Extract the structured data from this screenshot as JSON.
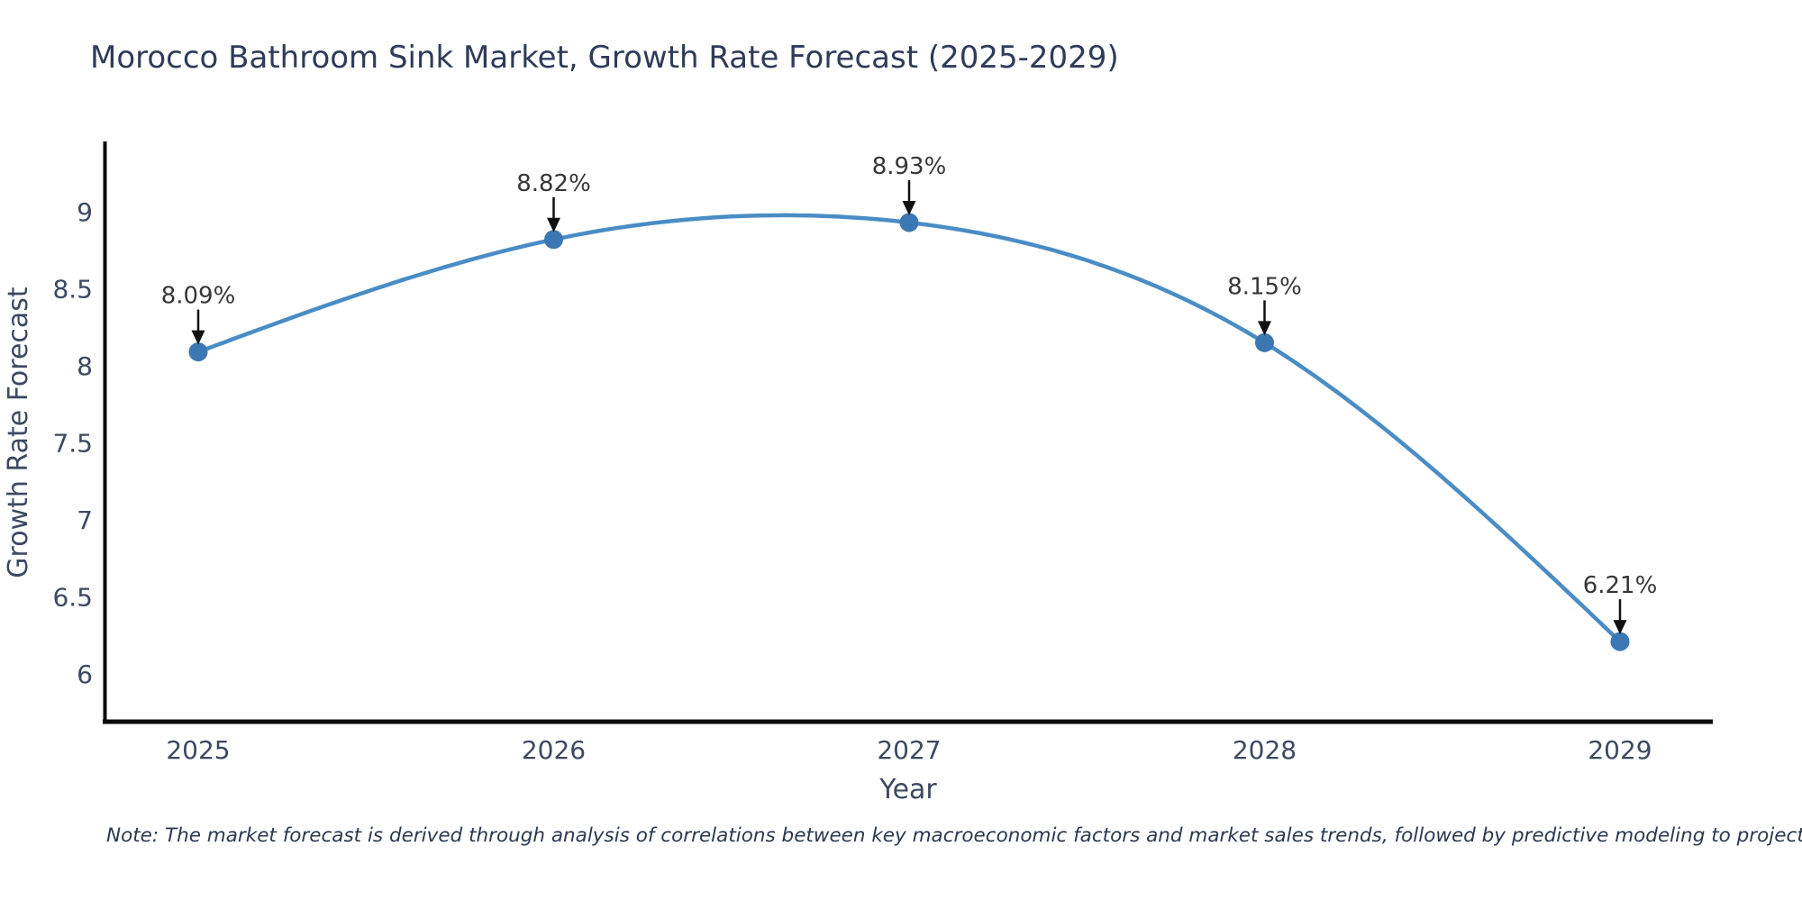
{
  "title": "Morocco Bathroom Sink Market, Growth Rate Forecast (2025-2029)",
  "note": "Note: The market forecast is derived through analysis of correlations between key macroeconomic factors and market sales trends, followed by predictive modeling to project future sales",
  "chart_data": {
    "type": "line",
    "title": "Morocco Bathroom Sink Market, Growth Rate Forecast (2025-2029)",
    "xlabel": "Year",
    "ylabel": "Growth Rate Forecast",
    "x": [
      2025,
      2026,
      2027,
      2028,
      2029
    ],
    "x_tick_labels": [
      "2025",
      "2026",
      "2027",
      "2028",
      "2029"
    ],
    "series": [
      {
        "name": "Growth Rate Forecast",
        "values": [
          8.09,
          8.82,
          8.93,
          8.15,
          6.21
        ]
      }
    ],
    "point_labels": [
      "8.09%",
      "8.82%",
      "8.93%",
      "8.15%",
      "6.21%"
    ],
    "yticks": [
      {
        "value": 6,
        "label": "6"
      },
      {
        "value": 6.5,
        "label": "6.5"
      },
      {
        "value": 7,
        "label": "7"
      },
      {
        "value": 7.5,
        "label": "7.5"
      },
      {
        "value": 8,
        "label": "8"
      },
      {
        "value": 8.5,
        "label": "8.5"
      },
      {
        "value": 9,
        "label": "9"
      }
    ],
    "ylim": [
      5.68,
      9.44
    ],
    "xlim": [
      2024.74,
      2029.26
    ],
    "grid": false,
    "legend": false,
    "smooth": true,
    "line_color": "#4a8cc4",
    "marker_color": "#3b77b2",
    "arrow_color": "#111111",
    "axis_color": "#0a0a0a",
    "tick_text_color": "#3d4961",
    "title_color": "#2f3b59",
    "annotation_text_color": "#373737"
  }
}
